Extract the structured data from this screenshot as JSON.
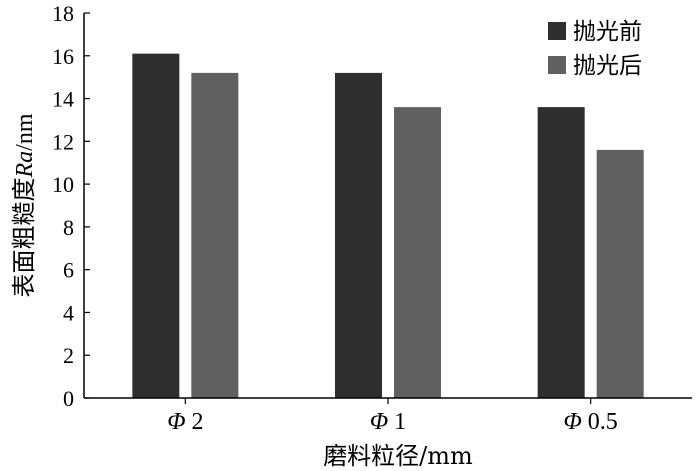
{
  "chart_data": {
    "type": "bar",
    "categories": [
      {
        "symbol": "Φ",
        "value": "2"
      },
      {
        "symbol": "Φ",
        "value": "1"
      },
      {
        "symbol": "Φ",
        "value": "0.5"
      }
    ],
    "series": [
      {
        "name": "抛光前",
        "color": "#2e2e2e",
        "values": [
          16.1,
          15.2,
          13.6
        ]
      },
      {
        "name": "抛光后",
        "color": "#606060",
        "values": [
          15.2,
          13.6,
          11.6
        ]
      }
    ],
    "xlabel": "磨料粒径/mm",
    "ylabel_prefix": "表面粗糙度",
    "ylabel_italic": "Ra",
    "ylabel_suffix": "/nm",
    "ylim": [
      0,
      18
    ],
    "yticks": [
      0,
      2,
      4,
      6,
      8,
      10,
      12,
      14,
      16,
      18
    ],
    "legend_position": "top-right",
    "grid": false
  }
}
